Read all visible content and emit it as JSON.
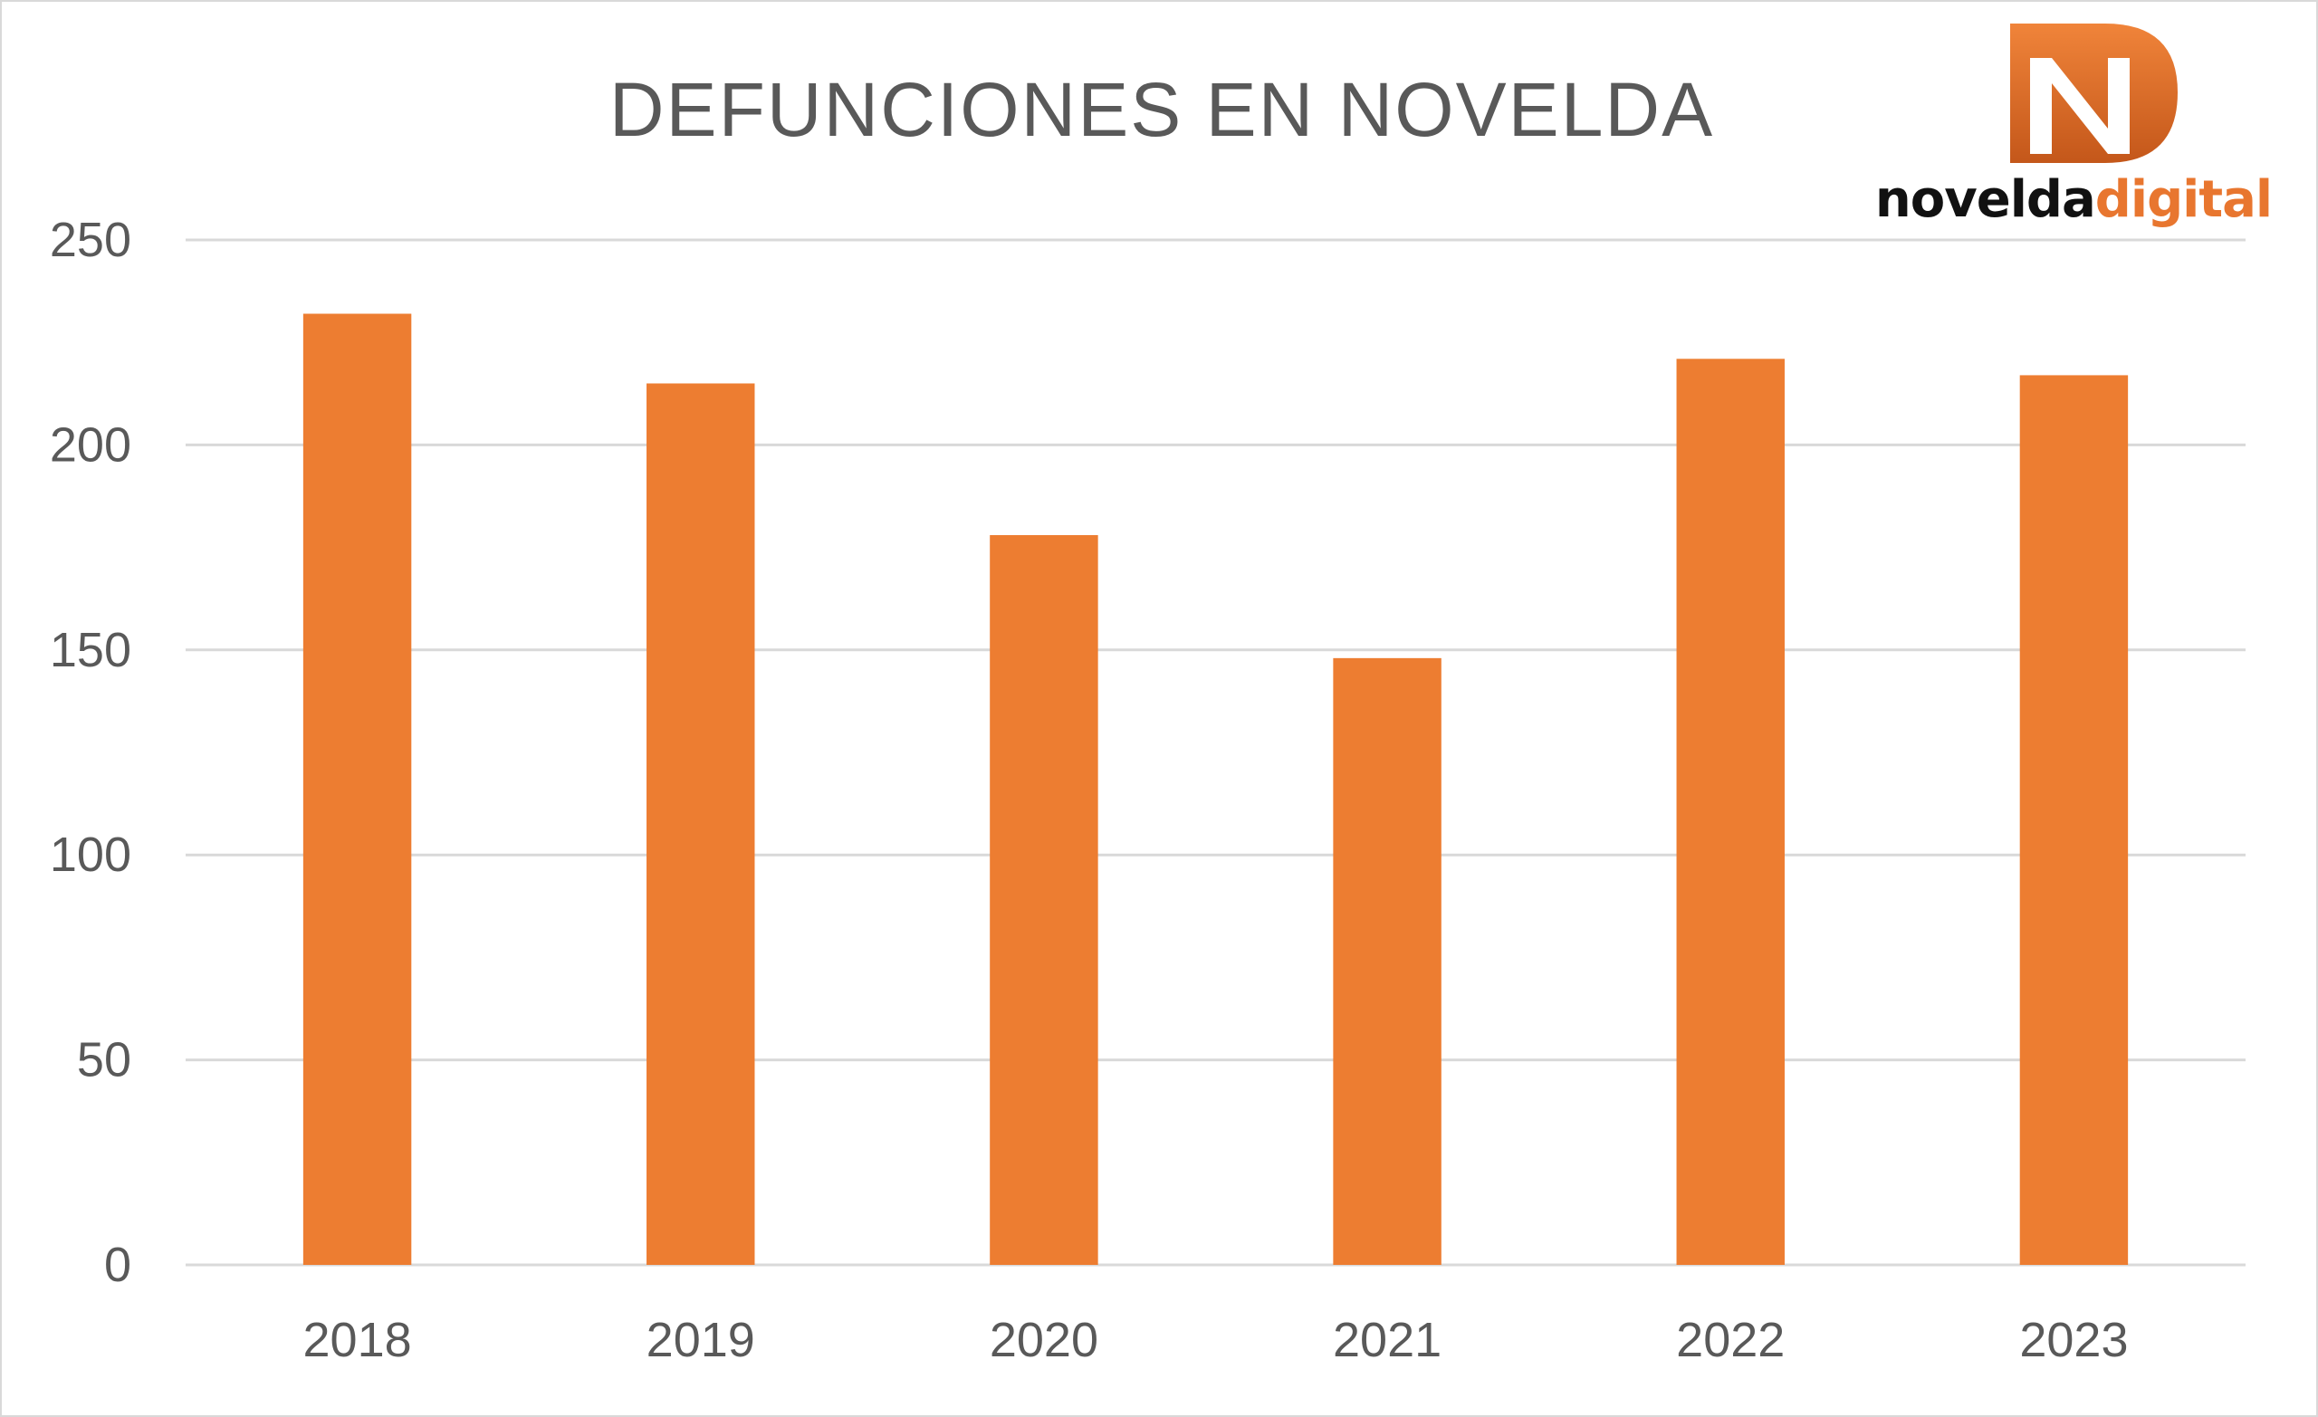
{
  "chart_data": {
    "type": "bar",
    "title": "DEFUNCIONES EN NOVELDA",
    "categories": [
      "2018",
      "2019",
      "2020",
      "2021",
      "2022",
      "2023"
    ],
    "values": [
      232,
      215,
      178,
      148,
      221,
      217
    ],
    "ylim": [
      0,
      250
    ],
    "yticks": [
      "0",
      "50",
      "100",
      "150",
      "200",
      "250"
    ],
    "grid": true,
    "legend": "none",
    "colors": {
      "bar": "#ed7d31",
      "grid": "#d9d9d9",
      "text": "#595959"
    }
  },
  "logo": {
    "word1": "novelda",
    "word2": "digital",
    "letter": "N",
    "colors": {
      "accent": "#e8762f",
      "dark": "#111111"
    }
  }
}
